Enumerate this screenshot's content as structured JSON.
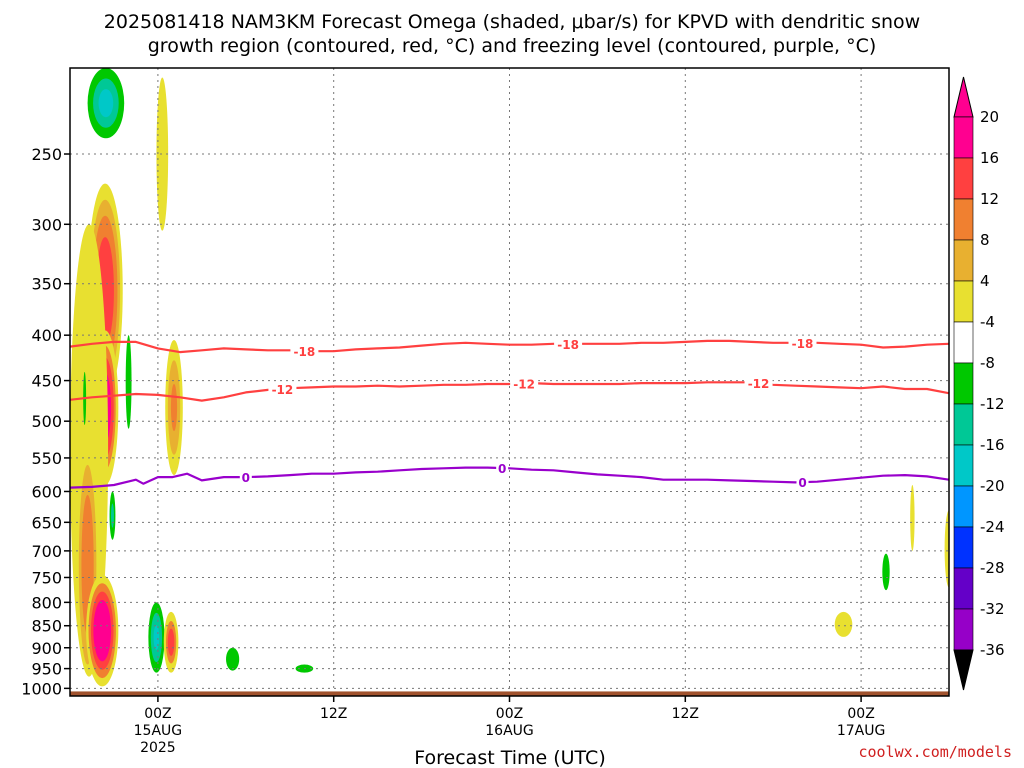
{
  "title": {
    "line1": "2025081418 NAM3KM Forecast Omega (shaded, μbar/s) for KPVD with dendritic snow",
    "line2": "growth region (contoured, red, °C) and freezing level (contoured, purple, °C)"
  },
  "credit": "coolwx.com/models",
  "chart_data": {
    "type": "heatmap",
    "title": "2025081418 NAM3KM Forecast Omega (shaded, μbar/s) for KPVD with dendritic snow growth region (contoured, red, °C) and freezing level (contoured, purple, °C)",
    "xlabel": "Forecast Time (UTC)",
    "ylabel": "",
    "x_units": "forecast hour from 2025-08-14 18Z",
    "xlim": [
      0,
      60
    ],
    "y_units": "hPa",
    "ylim": [
      1020,
      200
    ],
    "y_scale": "log",
    "y_ticks": [
      250,
      300,
      350,
      400,
      450,
      500,
      550,
      600,
      650,
      700,
      750,
      800,
      850,
      900,
      950,
      1000
    ],
    "x_ticks": [
      {
        "x": 6,
        "label": "00Z",
        "label2": "15AUG",
        "label3": "2025"
      },
      {
        "x": 18,
        "label": "12Z",
        "label2": "",
        "label3": ""
      },
      {
        "x": 30,
        "label": "00Z",
        "label2": "16AUG",
        "label3": ""
      },
      {
        "x": 42,
        "label": "12Z",
        "label2": "",
        "label3": ""
      },
      {
        "x": 54,
        "label": "00Z",
        "label2": "17AUG",
        "label3": ""
      }
    ],
    "grid": true,
    "colorbar": {
      "levels": [
        "20",
        "16",
        "12",
        "8",
        "4",
        "-4",
        "-8",
        "-12",
        "-16",
        "-20",
        "-24",
        "-28",
        "-32",
        "-36"
      ],
      "colors": [
        "#ff0090",
        "#ff4040",
        "#f08030",
        "#e8b030",
        "#e8e030",
        "#ffffff",
        "#00c800",
        "#00c896",
        "#00c8c8",
        "#0096ff",
        "#0032ff",
        "#6400c8",
        "#9600c8",
        "#a0a0a0"
      ],
      "top_arrow_color": "#ff0090",
      "bottom_arrow_color": "#000000"
    },
    "terrain_color": "#a0522d",
    "dgz_color": "#ff4040",
    "freezing_color": "#9900cc",
    "contours": [
      {
        "name": "-18",
        "color": "#ff4040",
        "labels": [
          16,
          34,
          50
        ],
        "points": [
          [
            0,
            412
          ],
          [
            1.5,
            409
          ],
          [
            3,
            407
          ],
          [
            4.5,
            407
          ],
          [
            6,
            414
          ],
          [
            7.5,
            418
          ],
          [
            9,
            416
          ],
          [
            10.5,
            414
          ],
          [
            12,
            415
          ],
          [
            13.5,
            416
          ],
          [
            15,
            416
          ],
          [
            16.5,
            417
          ],
          [
            18,
            417
          ],
          [
            19.5,
            415
          ],
          [
            21,
            414
          ],
          [
            22.5,
            413
          ],
          [
            24,
            411
          ],
          [
            25.5,
            409
          ],
          [
            27,
            408
          ],
          [
            28.5,
            409
          ],
          [
            30,
            410
          ],
          [
            31.5,
            410
          ],
          [
            33,
            409
          ],
          [
            34.5,
            409
          ],
          [
            36,
            409
          ],
          [
            37.5,
            409
          ],
          [
            39,
            408
          ],
          [
            40.5,
            408
          ],
          [
            42,
            407
          ],
          [
            43.5,
            406
          ],
          [
            45,
            406
          ],
          [
            46.5,
            407
          ],
          [
            48,
            408
          ],
          [
            49.5,
            408
          ],
          [
            51,
            408
          ],
          [
            52.5,
            409
          ],
          [
            54,
            410
          ],
          [
            55.5,
            413
          ],
          [
            57,
            412
          ],
          [
            58.5,
            410
          ],
          [
            60,
            409
          ]
        ]
      },
      {
        "name": "-12",
        "color": "#ff4040",
        "labels": [
          14.5,
          31,
          47
        ],
        "points": [
          [
            0,
            473
          ],
          [
            1.5,
            470
          ],
          [
            3,
            468
          ],
          [
            4.5,
            466
          ],
          [
            6,
            467
          ],
          [
            7.5,
            470
          ],
          [
            9,
            474
          ],
          [
            10.5,
            470
          ],
          [
            12,
            464
          ],
          [
            13.5,
            461
          ],
          [
            15,
            459
          ],
          [
            16.5,
            458
          ],
          [
            18,
            457
          ],
          [
            19.5,
            457
          ],
          [
            21,
            456
          ],
          [
            22.5,
            457
          ],
          [
            24,
            456
          ],
          [
            25.5,
            455
          ],
          [
            27,
            455
          ],
          [
            28.5,
            454
          ],
          [
            30,
            454
          ],
          [
            31.5,
            453
          ],
          [
            33,
            454
          ],
          [
            34.5,
            454
          ],
          [
            36,
            454
          ],
          [
            37.5,
            454
          ],
          [
            39,
            453
          ],
          [
            40.5,
            453
          ],
          [
            42,
            453
          ],
          [
            43.5,
            452
          ],
          [
            45,
            452
          ],
          [
            46.5,
            452
          ],
          [
            48,
            455
          ],
          [
            49.5,
            456
          ],
          [
            51,
            457
          ],
          [
            52.5,
            458
          ],
          [
            54,
            459
          ],
          [
            55.5,
            457
          ],
          [
            57,
            460
          ],
          [
            58.5,
            460
          ],
          [
            60,
            465
          ]
        ]
      },
      {
        "name": "0",
        "color": "#9900cc",
        "labels": [
          12,
          29.5,
          50
        ],
        "points": [
          [
            0,
            594
          ],
          [
            1.5,
            593
          ],
          [
            3,
            590
          ],
          [
            4.5,
            582
          ],
          [
            5,
            588
          ],
          [
            6,
            578
          ],
          [
            7,
            578
          ],
          [
            8,
            573
          ],
          [
            9,
            583
          ],
          [
            10.5,
            578
          ],
          [
            12,
            578
          ],
          [
            13.5,
            577
          ],
          [
            15,
            575
          ],
          [
            16.5,
            573
          ],
          [
            18,
            573
          ],
          [
            19.5,
            571
          ],
          [
            21,
            570
          ],
          [
            22.5,
            568
          ],
          [
            24,
            566
          ],
          [
            25.5,
            565
          ],
          [
            27,
            564
          ],
          [
            28.5,
            564
          ],
          [
            30,
            565
          ],
          [
            31.5,
            567
          ],
          [
            33,
            568
          ],
          [
            34.5,
            571
          ],
          [
            36,
            574
          ],
          [
            37.5,
            576
          ],
          [
            39,
            578
          ],
          [
            40.5,
            582
          ],
          [
            42,
            582
          ],
          [
            43.5,
            582
          ],
          [
            45,
            583
          ],
          [
            46.5,
            584
          ],
          [
            48,
            585
          ],
          [
            49.5,
            586
          ],
          [
            51,
            585
          ],
          [
            52.5,
            582
          ],
          [
            54,
            579
          ],
          [
            55.5,
            576
          ],
          [
            57,
            575
          ],
          [
            58.5,
            577
          ],
          [
            60,
            582
          ]
        ]
      }
    ],
    "omega_cells": [
      {
        "name": "upper-green-plume",
        "x": 2.45,
        "p": 200,
        "dx": 1.25,
        "top": 200,
        "bottom": 240,
        "layers": [
          [
            "#00c800",
            1.0
          ],
          [
            "#00c896",
            0.7
          ],
          [
            "#00c8c8",
            0.4
          ]
        ]
      },
      {
        "name": "upper-yellow-streak",
        "x": 6.3,
        "p": 270,
        "dx": 0.4,
        "top": 205,
        "bottom": 305,
        "layers": [
          [
            "#e8e030",
            1.0
          ]
        ]
      },
      {
        "name": "main-updraft-upper",
        "x": 2.4,
        "p": 340,
        "dx": 1.2,
        "top": 270,
        "bottom": 470,
        "layers": [
          [
            "#e8e030",
            1.0
          ],
          [
            "#e8b030",
            0.85
          ],
          [
            "#f08030",
            0.7
          ],
          [
            "#ff4040",
            0.5
          ]
        ]
      },
      {
        "name": "main-updraft-core",
        "x": 2.4,
        "p": 500,
        "dx": 0.9,
        "top": 395,
        "bottom": 590,
        "layers": [
          [
            "#e8e030",
            1.0
          ],
          [
            "#f08030",
            0.8
          ],
          [
            "#ff4040",
            0.65
          ],
          [
            "#ff0090",
            0.45
          ]
        ]
      },
      {
        "name": "left-yellow-band",
        "x": 1.3,
        "p": 560,
        "dx": 1.3,
        "top": 300,
        "bottom": 970,
        "layers": [
          [
            "#e8e030",
            1.0
          ]
        ]
      },
      {
        "name": "left-orange-band",
        "x": 1.2,
        "p": 720,
        "dx": 0.6,
        "top": 560,
        "bottom": 940,
        "layers": [
          [
            "#e8b030",
            1.0
          ],
          [
            "#f08030",
            0.7
          ]
        ]
      },
      {
        "name": "low-updraft-core",
        "x": 2.2,
        "p": 860,
        "dx": 1.1,
        "top": 745,
        "bottom": 995,
        "layers": [
          [
            "#e8e030",
            1.0
          ],
          [
            "#f08030",
            0.85
          ],
          [
            "#ff4040",
            0.7
          ],
          [
            "#ff0090",
            0.55
          ]
        ]
      },
      {
        "name": "mid-yellow-cell",
        "x": 7.1,
        "p": 470,
        "dx": 0.6,
        "top": 405,
        "bottom": 575,
        "layers": [
          [
            "#e8e030",
            1.0
          ],
          [
            "#e8b030",
            0.7
          ],
          [
            "#f08030",
            0.35
          ]
        ]
      },
      {
        "name": "green-streak-450",
        "x": 4.0,
        "p": 440,
        "dx": 0.2,
        "top": 400,
        "bottom": 510,
        "layers": [
          [
            "#00c800",
            1.0
          ]
        ]
      },
      {
        "name": "green-sliver",
        "x": 1.0,
        "p": 465,
        "dx": 0.1,
        "top": 440,
        "bottom": 505,
        "layers": [
          [
            "#00c800",
            1.0
          ]
        ]
      },
      {
        "name": "green-650",
        "x": 2.9,
        "p": 630,
        "dx": 0.2,
        "top": 600,
        "bottom": 680,
        "layers": [
          [
            "#00c800",
            1.0
          ],
          [
            "#00c896",
            0.5
          ]
        ]
      },
      {
        "name": "low-green-cell",
        "x": 5.9,
        "p": 870,
        "dx": 0.55,
        "top": 800,
        "bottom": 960,
        "layers": [
          [
            "#00c800",
            1.0
          ],
          [
            "#00c896",
            0.7
          ],
          [
            "#00c8c8",
            0.35
          ]
        ]
      },
      {
        "name": "low-orange-cell",
        "x": 6.9,
        "p": 880,
        "dx": 0.5,
        "top": 820,
        "bottom": 960,
        "layers": [
          [
            "#e8e030",
            1.0
          ],
          [
            "#f08030",
            0.7
          ],
          [
            "#ff4040",
            0.45
          ]
        ]
      },
      {
        "name": "green-910",
        "x": 11.1,
        "p": 920,
        "dx": 0.45,
        "top": 900,
        "bottom": 955,
        "layers": [
          [
            "#00c800",
            1.0
          ]
        ]
      },
      {
        "name": "green-950",
        "x": 16.0,
        "p": 950,
        "dx": 0.6,
        "top": 940,
        "bottom": 960,
        "layers": [
          [
            "#00c800",
            1.0
          ]
        ]
      },
      {
        "name": "green-750",
        "x": 55.7,
        "p": 740,
        "dx": 0.25,
        "top": 705,
        "bottom": 775,
        "layers": [
          [
            "#00c800",
            1.0
          ]
        ]
      },
      {
        "name": "yellow-650",
        "x": 57.5,
        "p": 640,
        "dx": 0.15,
        "top": 590,
        "bottom": 700,
        "layers": [
          [
            "#e8e030",
            1.0
          ]
        ]
      },
      {
        "name": "yellow-850",
        "x": 52.8,
        "p": 845,
        "dx": 0.6,
        "top": 820,
        "bottom": 875,
        "layers": [
          [
            "#e8e030",
            1.0
          ]
        ]
      },
      {
        "name": "yellow-right-edge",
        "x": 60.0,
        "p": 700,
        "dx": 0.3,
        "top": 630,
        "bottom": 770,
        "layers": [
          [
            "#e8e030",
            1.0
          ]
        ]
      }
    ]
  }
}
